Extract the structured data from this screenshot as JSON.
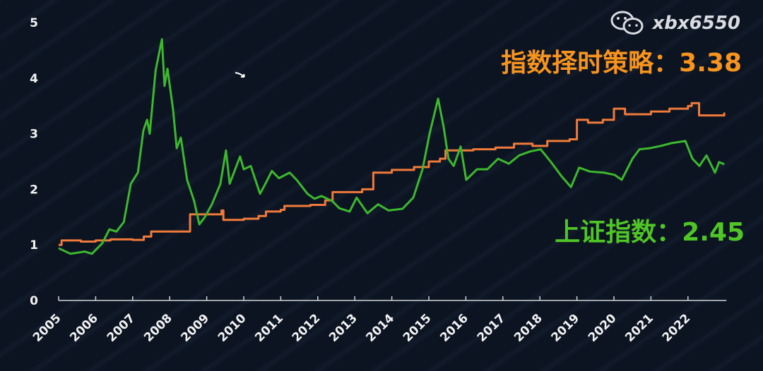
{
  "watermark": {
    "icon": "wechat-icon",
    "text": "xbx6550"
  },
  "annotations": {
    "strategy": "指数择时策略：3.38",
    "index": "上证指数：2.45"
  },
  "colors": {
    "background": "#0c1422",
    "strategy": "#f07a3a",
    "index": "#3db82e",
    "strategy_text": "#f7941d",
    "index_text": "#4fc626"
  },
  "chart_data": {
    "type": "line",
    "title": "",
    "xlabel": "",
    "ylabel": "",
    "xlim": [
      2005,
      2023
    ],
    "ylim": [
      0,
      5
    ],
    "grid": false,
    "x_ticks": [
      "2005",
      "2006",
      "2007",
      "2008",
      "2009",
      "2010",
      "2011",
      "2012",
      "2013",
      "2014",
      "2015",
      "2016",
      "2017",
      "2018",
      "2019",
      "2020",
      "2021",
      "2022"
    ],
    "y_ticks": [
      "0",
      "1",
      "2",
      "3",
      "4",
      "5"
    ],
    "series": [
      {
        "name": "指数择时策略",
        "color": "#f07a3a",
        "step": true,
        "x": [
          2005.0,
          2005.08,
          2005.6,
          2006.0,
          2006.4,
          2007.0,
          2007.3,
          2007.5,
          2008.55,
          2009.4,
          2009.45,
          2010.0,
          2010.4,
          2010.6,
          2011.0,
          2011.1,
          2011.8,
          2012.2,
          2012.4,
          2013.2,
          2013.5,
          2014.0,
          2014.6,
          2015.0,
          2015.3,
          2015.45,
          2016.2,
          2016.8,
          2017.3,
          2017.8,
          2018.2,
          2018.8,
          2019.0,
          2019.3,
          2019.7,
          2020.0,
          2020.3,
          2021.0,
          2021.5,
          2022.0,
          2022.1,
          2022.3,
          2022.98
        ],
        "y": [
          1.0,
          1.08,
          1.06,
          1.08,
          1.1,
          1.09,
          1.15,
          1.24,
          1.55,
          1.62,
          1.45,
          1.47,
          1.52,
          1.6,
          1.63,
          1.7,
          1.72,
          1.8,
          1.95,
          2.0,
          2.3,
          2.35,
          2.4,
          2.5,
          2.55,
          2.7,
          2.72,
          2.75,
          2.82,
          2.78,
          2.87,
          2.9,
          3.25,
          3.2,
          3.25,
          3.45,
          3.35,
          3.4,
          3.45,
          3.5,
          3.55,
          3.33,
          3.38
        ]
      },
      {
        "name": "上证指数",
        "color": "#3db82e",
        "step": false,
        "x": [
          2005.0,
          2005.32,
          2005.71,
          2005.9,
          2006.18,
          2006.37,
          2006.56,
          2006.76,
          2006.95,
          2007.14,
          2007.29,
          2007.39,
          2007.46,
          2007.62,
          2007.79,
          2007.86,
          2007.94,
          2008.09,
          2008.19,
          2008.3,
          2008.47,
          2008.66,
          2008.8,
          2008.95,
          2009.14,
          2009.37,
          2009.52,
          2009.62,
          2009.9,
          2010.0,
          2010.19,
          2010.44,
          2010.57,
          2010.76,
          2010.95,
          2011.24,
          2011.43,
          2011.72,
          2011.91,
          2012.1,
          2012.39,
          2012.58,
          2012.86,
          2013.05,
          2013.34,
          2013.63,
          2013.91,
          2014.29,
          2014.58,
          2014.83,
          2015.02,
          2015.25,
          2015.4,
          2015.53,
          2015.67,
          2015.86,
          2016.01,
          2016.3,
          2016.58,
          2016.87,
          2017.16,
          2017.44,
          2017.73,
          2018.02,
          2018.3,
          2018.59,
          2018.84,
          2019.06,
          2019.35,
          2019.73,
          2020.02,
          2020.21,
          2020.5,
          2020.69,
          2020.97,
          2021.26,
          2021.55,
          2021.93,
          2022.12,
          2022.31,
          2022.5,
          2022.73,
          2022.84,
          2022.98
        ],
        "y": [
          0.94,
          0.84,
          0.88,
          0.84,
          1.03,
          1.28,
          1.24,
          1.41,
          2.1,
          2.3,
          3.06,
          3.25,
          3.0,
          4.14,
          4.7,
          3.86,
          4.17,
          3.44,
          2.74,
          2.93,
          2.17,
          1.79,
          1.37,
          1.5,
          1.73,
          2.1,
          2.7,
          2.1,
          2.59,
          2.36,
          2.42,
          1.92,
          2.08,
          2.33,
          2.2,
          2.3,
          2.17,
          1.92,
          1.83,
          1.88,
          1.79,
          1.66,
          1.6,
          1.85,
          1.57,
          1.73,
          1.62,
          1.65,
          1.85,
          2.36,
          3.0,
          3.63,
          3.12,
          2.55,
          2.42,
          2.77,
          2.17,
          2.36,
          2.36,
          2.55,
          2.46,
          2.61,
          2.68,
          2.72,
          2.49,
          2.23,
          2.04,
          2.39,
          2.32,
          2.3,
          2.26,
          2.17,
          2.55,
          2.72,
          2.74,
          2.78,
          2.83,
          2.87,
          2.55,
          2.42,
          2.61,
          2.3,
          2.49,
          2.45
        ]
      }
    ]
  }
}
